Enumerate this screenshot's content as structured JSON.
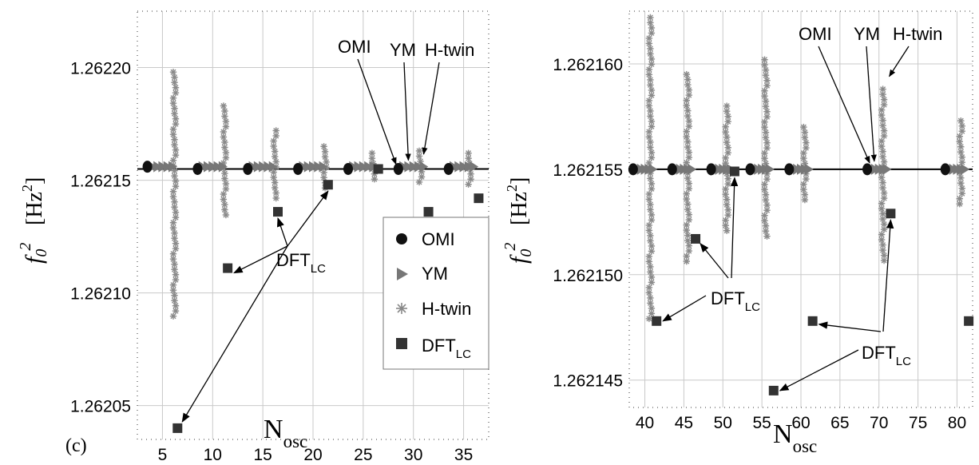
{
  "panel_label": "(c)",
  "chart_data": [
    {
      "type": "scatter",
      "xlabel": {
        "main": "N",
        "sub": "osc"
      },
      "ylabel": {
        "f": "f",
        "sub": "0",
        "sup": "2",
        "unit_open": "[Hz",
        "unit_sup": "2",
        "unit_close": "]"
      },
      "xlim": [
        2.5,
        37.5
      ],
      "ylim": [
        1.262035,
        1.262225
      ],
      "xticks": [
        5,
        10,
        15,
        20,
        25,
        30,
        35
      ],
      "xtick_labels": [
        "5",
        "10",
        "15",
        "20",
        "25",
        "30",
        "35"
      ],
      "yticks": [
        1.26205,
        1.2621,
        1.26215,
        1.2622
      ],
      "ytick_labels": [
        "1.26205",
        "1.26210",
        "1.26215",
        "1.26220"
      ],
      "grid": true,
      "hline": 1.262155,
      "series": [
        {
          "name": "OMI",
          "marker": "circle",
          "x": [
            3.5,
            8.5,
            13.5,
            18.5,
            23.5,
            28.5,
            33.5
          ],
          "y": [
            1.262156,
            1.262155,
            1.262155,
            1.262155,
            1.262155,
            1.262155,
            1.262155
          ]
        },
        {
          "name": "YM",
          "marker": "triangle-right",
          "points_from": [
            [
              4,
              6
            ],
            [
              9,
              11
            ],
            [
              14,
              16
            ],
            [
              19,
              21
            ],
            [
              24,
              26
            ],
            [
              29,
              31
            ],
            [
              34,
              36
            ]
          ],
          "y": 1.262156
        },
        {
          "name": "H-twin",
          "marker": "asterisk",
          "columns": [
            {
              "x": 6.2,
              "y_min": 1.262088,
              "y_max": 1.262198
            },
            {
              "x": 11.2,
              "y_min": 1.262133,
              "y_max": 1.262183
            },
            {
              "x": 16.2,
              "y_min": 1.26214,
              "y_max": 1.262172
            },
            {
              "x": 21.2,
              "y_min": 1.262145,
              "y_max": 1.262165
            },
            {
              "x": 26.0,
              "y_min": 1.26215,
              "y_max": 1.262162
            },
            {
              "x": 30.7,
              "y_min": 1.262148,
              "y_max": 1.262163
            },
            {
              "x": 35.6,
              "y_min": 1.262148,
              "y_max": 1.262162
            }
          ]
        },
        {
          "name": "DFT_LC",
          "marker": "square",
          "x": [
            6.5,
            11.5,
            16.5,
            21.5,
            26.5,
            31.5,
            36.5
          ],
          "y": [
            1.26204,
            1.262111,
            1.262136,
            1.262148,
            1.262155,
            1.262136,
            1.262142
          ]
        }
      ],
      "legend": {
        "position": "bottom-right",
        "entries": [
          {
            "label": "OMI",
            "marker": "circle"
          },
          {
            "label": "YM",
            "marker": "triangle-right"
          },
          {
            "label": "H-twin",
            "marker": "asterisk"
          },
          {
            "label": "DFT",
            "sub": "LC",
            "marker": "square"
          }
        ]
      },
      "annotations": [
        {
          "text": "OMI",
          "target_series": "OMI",
          "target": [
            28.5,
            1.262155
          ]
        },
        {
          "text": "YM",
          "target_series": "YM",
          "target": [
            29.5,
            1.262156
          ]
        },
        {
          "text": "H-twin",
          "target_series": "H-twin",
          "target": [
            30.7,
            1.262158
          ]
        },
        {
          "text": "DFT",
          "sub": "LC",
          "targets": [
            [
              6.5,
              1.26204
            ],
            [
              11.5,
              1.262111
            ],
            [
              16.5,
              1.262136
            ],
            [
              21.5,
              1.262148
            ]
          ]
        }
      ]
    },
    {
      "type": "scatter",
      "xlabel": {
        "main": "N",
        "sub": "osc"
      },
      "ylabel": {
        "f": "f",
        "sub": "0",
        "sup": "2",
        "unit_open": "[Hz",
        "unit_sup": "2",
        "unit_close": "]"
      },
      "xlim": [
        38,
        82
      ],
      "ylim": [
        1.2621437,
        1.2621625
      ],
      "xticks": [
        40,
        45,
        50,
        55,
        60,
        65,
        70,
        75,
        80
      ],
      "xtick_labels": [
        "40",
        "45",
        "50",
        "55",
        "60",
        "65",
        "70",
        "75",
        "80"
      ],
      "yticks": [
        1.262145,
        1.26215,
        1.262155,
        1.26216
      ],
      "ytick_labels": [
        "1.262145",
        "1.262150",
        "1.262155",
        "1.262160"
      ],
      "grid": true,
      "hline": 1.262155,
      "series": [
        {
          "name": "OMI",
          "marker": "circle",
          "x": [
            38.5,
            43.5,
            48.5,
            53.5,
            58.5,
            68.5,
            78.5
          ],
          "y": [
            1.262155,
            1.262155,
            1.262155,
            1.262155,
            1.262155,
            1.262155,
            1.262155
          ]
        },
        {
          "name": "YM",
          "marker": "triangle-right",
          "points_from": [
            [
              39,
              41
            ],
            [
              44,
              46
            ],
            [
              49,
              51
            ],
            [
              54,
              56
            ],
            [
              59,
              61
            ],
            [
              69,
              71
            ],
            [
              79,
              81
            ]
          ],
          "y": 1.262155
        },
        {
          "name": "H-twin",
          "marker": "asterisk",
          "columns": [
            {
              "x": 40.7,
              "y_min": 1.2621478,
              "y_max": 1.2621622
            },
            {
              "x": 45.5,
              "y_min": 1.2621505,
              "y_max": 1.2621595
            },
            {
              "x": 50.5,
              "y_min": 1.262152,
              "y_max": 1.262158
            },
            {
              "x": 55.5,
              "y_min": 1.2621517,
              "y_max": 1.2621602
            },
            {
              "x": 60.5,
              "y_min": 1.2621535,
              "y_max": 1.262157
            },
            {
              "x": 70.5,
              "y_min": 1.2621506,
              "y_max": 1.2621588
            },
            {
              "x": 80.5,
              "y_min": 1.2621532,
              "y_max": 1.2621573
            }
          ]
        },
        {
          "name": "DFT_LC",
          "marker": "square",
          "x": [
            41.5,
            46.5,
            51.5,
            56.5,
            61.5,
            71.5,
            81.5
          ],
          "y": [
            1.2621478,
            1.2621517,
            1.2621549,
            1.2621445,
            1.2621478,
            1.2621529,
            1.2621478
          ]
        }
      ],
      "annotations": [
        {
          "text": "OMI",
          "target_series": "OMI",
          "target": [
            68.5,
            1.262155
          ]
        },
        {
          "text": "YM",
          "target_series": "YM",
          "target": [
            69.5,
            1.262155
          ]
        },
        {
          "text": "H-twin",
          "target_series": "H-twin",
          "target": [
            70.5,
            1.2621588
          ]
        },
        {
          "text": "DFT",
          "sub": "LC",
          "targets": [
            [
              41.5,
              1.2621478
            ],
            [
              46.5,
              1.2621517
            ],
            [
              51.5,
              1.2621549
            ]
          ]
        },
        {
          "text": "DFT",
          "sub": "LC",
          "targets": [
            [
              56.5,
              1.2621445
            ],
            [
              61.5,
              1.2621478
            ],
            [
              71.5,
              1.2621529
            ]
          ]
        }
      ]
    }
  ]
}
